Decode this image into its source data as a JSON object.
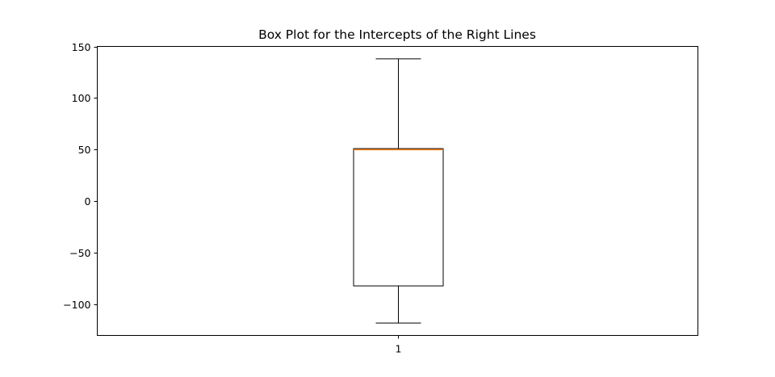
{
  "chart_data": {
    "type": "box",
    "title": "Box Plot for the Intercepts of the Right Lines",
    "xlabel": "",
    "ylabel": "",
    "ylim": [
      -130,
      150
    ],
    "y_ticks": [
      150,
      100,
      50,
      0,
      -50,
      -100
    ],
    "y_tick_labels": [
      "150",
      "100",
      "50",
      "0",
      "−50",
      "−100"
    ],
    "categories": [
      "1"
    ],
    "boxes": [
      {
        "category": "1",
        "whisker_low": -118,
        "q1": -82,
        "median": 50,
        "q3": 51,
        "whisker_high": 138
      }
    ],
    "grid": false,
    "colors": {
      "box": "#000000",
      "median": "#ff7f0e",
      "whisker": "#000000"
    }
  }
}
